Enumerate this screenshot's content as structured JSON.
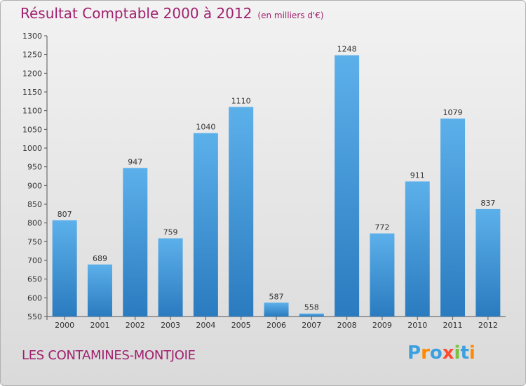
{
  "title": "Résultat Comptable 2000 à 2012",
  "subtitle": "(en milliers d'€)",
  "commune": "LES CONTAMINES-MONTJOIE",
  "logo": "Proxiti",
  "colors": {
    "title": "#a0206e",
    "bar_top": "#5cb0ea",
    "bar_bottom": "#2a7bbf",
    "logo": [
      "#3aa0e0",
      "#ff8a00",
      "#3aa0e0",
      "#ff4a30",
      "#7ac143",
      "#3aa0e0",
      "#ff8a00"
    ]
  },
  "chart_data": {
    "type": "bar",
    "title": "Résultat Comptable 2000 à 2012",
    "ylabel": "en milliers d'€",
    "xlabel": "",
    "categories": [
      "2000",
      "2001",
      "2002",
      "2003",
      "2004",
      "2005",
      "2006",
      "2007",
      "2008",
      "2009",
      "2010",
      "2011",
      "2012"
    ],
    "values": [
      807,
      689,
      947,
      759,
      1040,
      1110,
      587,
      558,
      1248,
      772,
      911,
      1079,
      837
    ],
    "ylim": [
      550,
      1300
    ],
    "yticks": [
      550,
      600,
      650,
      700,
      750,
      800,
      850,
      900,
      950,
      1000,
      1050,
      1100,
      1150,
      1200,
      1250,
      1300
    ],
    "grid": false,
    "legend": "none"
  }
}
